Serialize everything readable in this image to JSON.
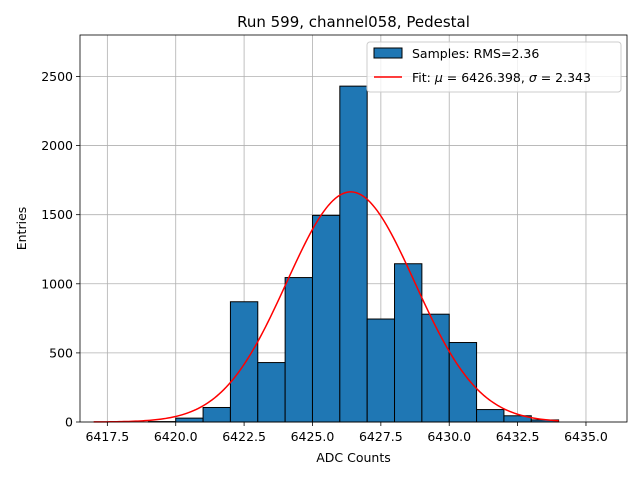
{
  "chart_data": {
    "type": "bar",
    "title": "Run 599, channel058, Pedestal",
    "xlabel": "ADC Counts",
    "ylabel": "Entries",
    "xlim": [
      6416.5,
      6436.5
    ],
    "ylim": [
      0,
      2800
    ],
    "xticks": [
      6417.5,
      6420.0,
      6422.5,
      6425.0,
      6427.5,
      6430.0,
      6432.5,
      6435.0
    ],
    "xtick_labels": [
      "6417.5",
      "6420.0",
      "6422.5",
      "6425.0",
      "6427.5",
      "6430.0",
      "6432.5",
      "6435.0"
    ],
    "yticks": [
      0,
      500,
      1000,
      1500,
      2000,
      2500
    ],
    "ytick_labels": [
      "0",
      "500",
      "1000",
      "1500",
      "2000",
      "2500"
    ],
    "grid": true,
    "legend_position": "top-right",
    "bin_width": 1,
    "bins": [
      {
        "x": 6419,
        "value": 3
      },
      {
        "x": 6420,
        "value": 28
      },
      {
        "x": 6421,
        "value": 105
      },
      {
        "x": 6422,
        "value": 870
      },
      {
        "x": 6423,
        "value": 430
      },
      {
        "x": 6424,
        "value": 1045
      },
      {
        "x": 6425,
        "value": 1495
      },
      {
        "x": 6426,
        "value": 2430
      },
      {
        "x": 6427,
        "value": 745
      },
      {
        "x": 6428,
        "value": 1145
      },
      {
        "x": 6429,
        "value": 780
      },
      {
        "x": 6430,
        "value": 575
      },
      {
        "x": 6431,
        "value": 90
      },
      {
        "x": 6432,
        "value": 45
      },
      {
        "x": 6433,
        "value": 15
      }
    ],
    "fit": {
      "mu": 6426.398,
      "sigma": 2.343,
      "amplitude": 1665,
      "x_range": [
        6417,
        6434
      ]
    },
    "legend": [
      {
        "label": "Samples: RMS=2.36",
        "kind": "patch"
      },
      {
        "label": "Fit: $\\mu$ = 6426.398, $\\sigma$ = 2.343",
        "kind": "line",
        "prefix": "Fit: ",
        "mu_symbol": "μ",
        "mid": " = 6426.398, ",
        "sigma_symbol": "σ",
        "suffix": " = 2.343"
      }
    ],
    "colors": {
      "bar_fill": "#1f77b4",
      "bar_edge": "#000000",
      "fit_line": "#ff0000",
      "grid": "#b0b0b0"
    }
  }
}
